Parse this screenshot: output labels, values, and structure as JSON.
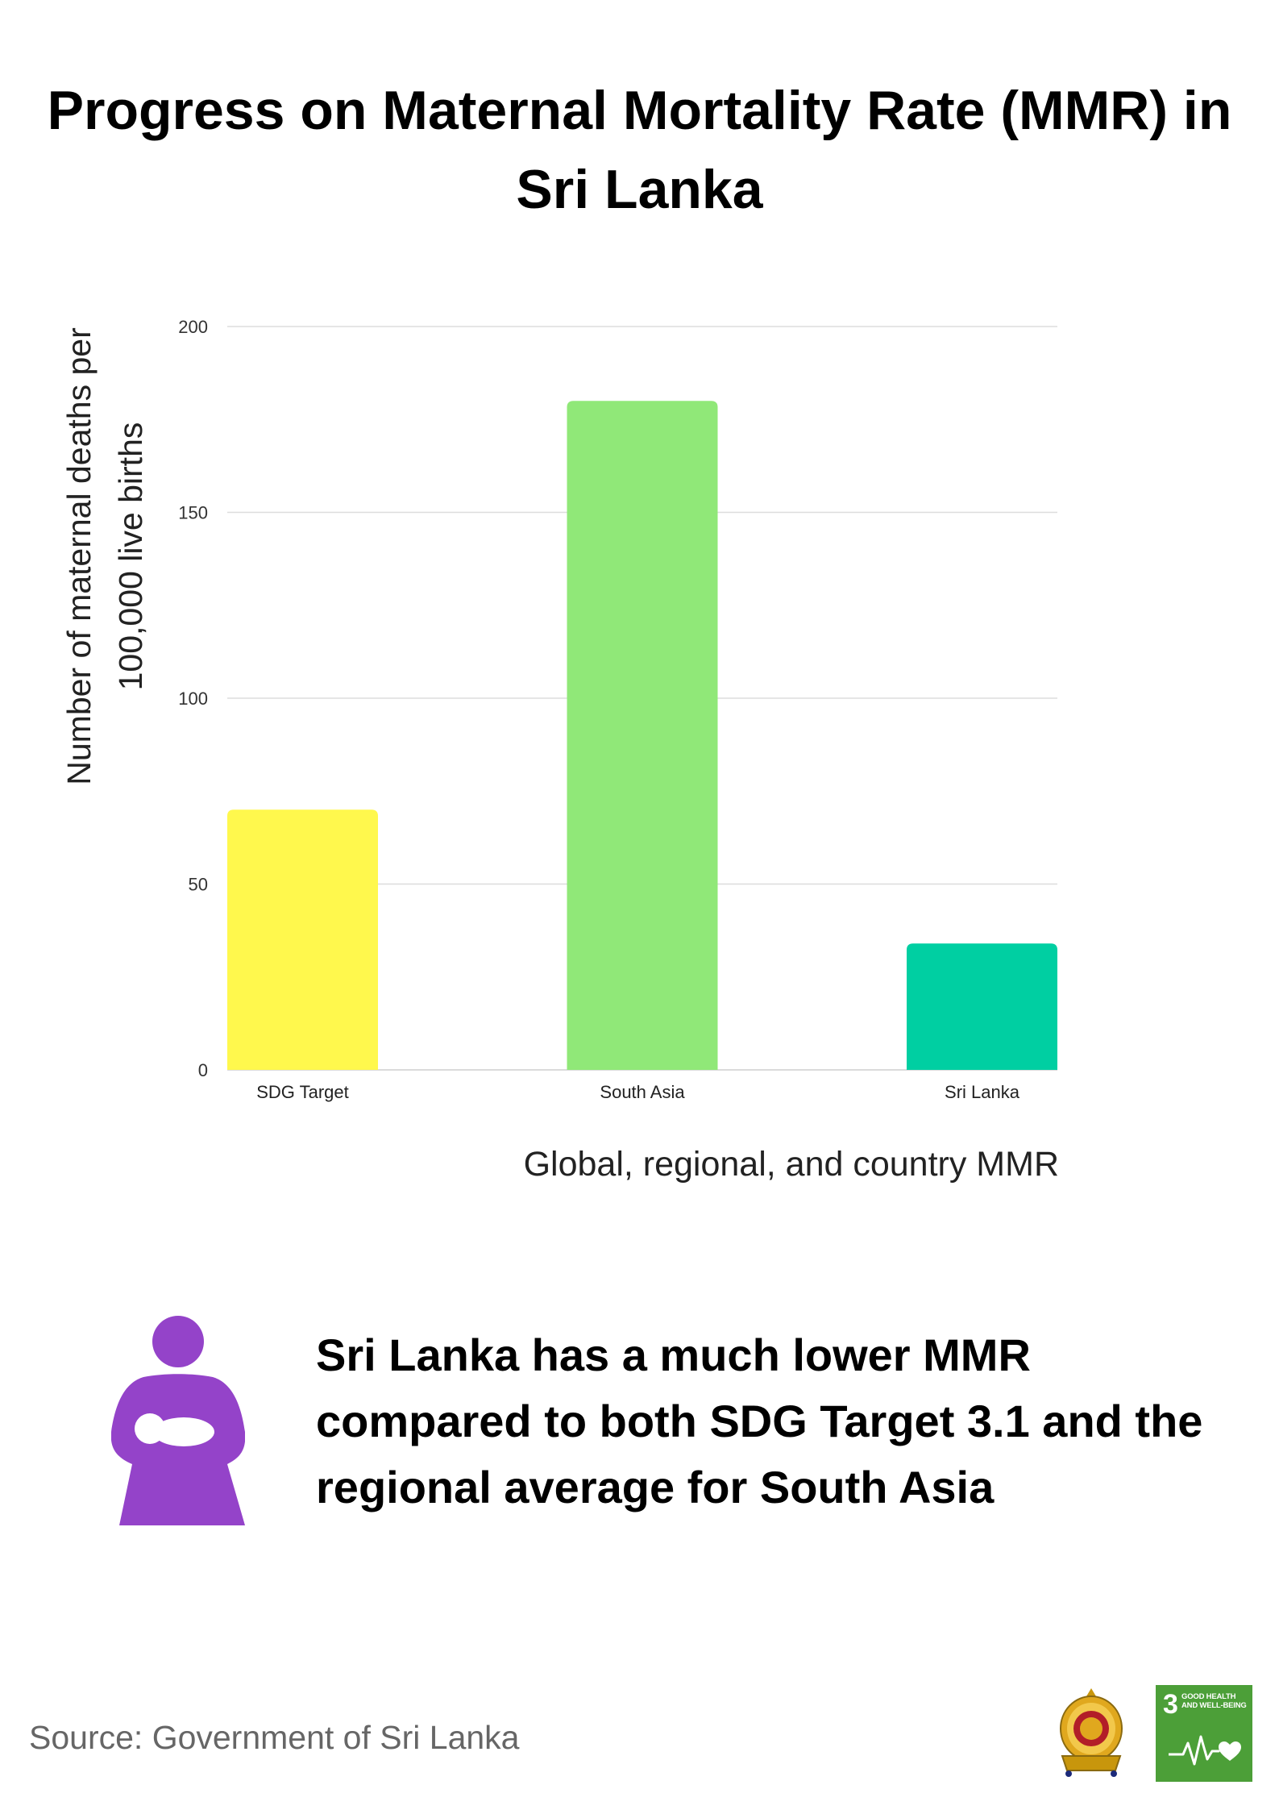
{
  "title": "Progress on Maternal Mortality Rate (MMR) in Sri Lanka",
  "chart_data": {
    "type": "bar",
    "categories": [
      "SDG Target",
      "South Asia",
      "Sri Lanka"
    ],
    "values": [
      70,
      180,
      34
    ],
    "colors": [
      "#fff84d",
      "#90e878",
      "#00cfa2"
    ],
    "xlabel": "Global, regional, and country MMR",
    "ylabel": "Number of maternal deaths per 100,000 live births",
    "ylim": [
      0,
      200
    ],
    "yticks": [
      0,
      50,
      100,
      150,
      200
    ],
    "grid": true
  },
  "callout": {
    "icon": "mother-holding-baby-icon",
    "icon_color": "#9443c9",
    "text": "Sri Lanka has a much lower MMR compared to both SDG Target 3.1 and the regional average for South Asia"
  },
  "footer": {
    "source": "Source: Government of Sri Lanka",
    "emblem_icon": "sri-lanka-emblem-icon",
    "sdg_badge": {
      "number": "3",
      "label": "GOOD HEALTH AND WELL-BEING",
      "icon": "heartbeat-icon",
      "color": "#4c9f38"
    }
  }
}
